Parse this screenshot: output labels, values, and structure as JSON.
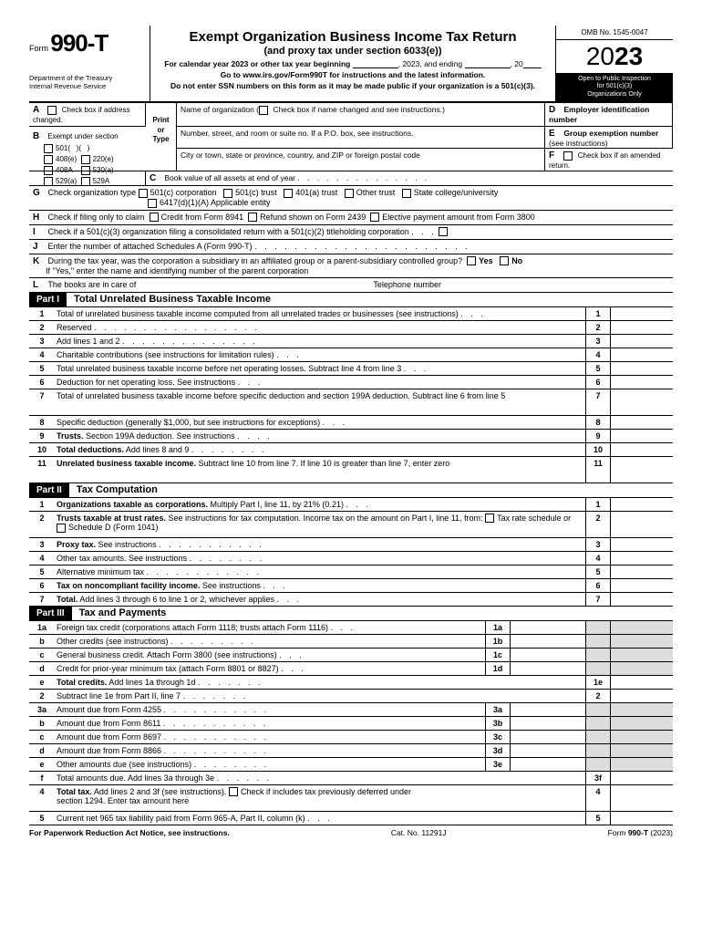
{
  "form": {
    "number": "990-T",
    "prefix": "Form"
  },
  "hdr": {
    "title": "Exempt Organization Business Income Tax Return",
    "sub": "(and proxy tax under section 6033(e))",
    "cal": "For calendar year 2023 or other tax year beginning",
    "cal2": ", 2023, and ending",
    "cal3": ", 20",
    "goto": "Go to www.irs.gov/Form990T for instructions and the latest information.",
    "ssn": "Do not enter SSN numbers on this form as it may be made public if your organization is a 501(c)(3).",
    "dept": "Department of the Treasury",
    "irs": "Internal Revenue Service",
    "omb": "OMB No. 1545-0047",
    "year": "23",
    "yrpre": "20",
    "insp1": "Open to Public Inspection",
    "insp2": "for 501(c)(3)",
    "insp3": "Organizations Only"
  },
  "A": {
    "lbl": "A",
    "txt": "Check box if address changed."
  },
  "B": {
    "lbl": "B",
    "txt": "Exempt under section",
    "opts": [
      "501(",
      "408(e)",
      "220(e)",
      "408A",
      "530(a)",
      "529(a)",
      "529A"
    ]
  },
  "pt": "Print or Type",
  "name": {
    "lbl": "Name of organization (",
    "cb": "Check box if name changed and see instructions.)"
  },
  "addr1": "Number, street, and room or suite no. If a P.O. box, see instructions.",
  "addr2": "City or town, state or province, country, and ZIP or foreign postal code",
  "C": {
    "lbl": "C",
    "txt": "Book value of all assets at end of year"
  },
  "D": {
    "lbl": "D",
    "txt": "Employer identification number"
  },
  "E": {
    "lbl": "E",
    "txt": "Group exemption number",
    "see": "(see instructions)"
  },
  "F": {
    "lbl": "F",
    "txt": "Check box if an amended return."
  },
  "G": {
    "lbl": "G",
    "txt": "Check organization type",
    "opts": [
      "501(c) corporation",
      "501(c) trust",
      "401(a) trust",
      "Other trust",
      "State college/university",
      "6417(d)(1)(A) Applicable entity"
    ]
  },
  "H": {
    "lbl": "H",
    "txt": "Check if filing only to claim",
    "opts": [
      "Credit from Form 8941",
      "Refund shown on Form 2439",
      "Elective payment amount from Form 3800"
    ]
  },
  "I": {
    "lbl": "I",
    "txt": "Check if a 501(c)(3) organization filing a consolidated return with a 501(c)(2) titleholding corporation"
  },
  "J": {
    "lbl": "J",
    "txt": "Enter the number of attached Schedules A (Form 990-T)"
  },
  "K": {
    "lbl": "K",
    "txt": "During the tax year, was the corporation a subsidiary in an affiliated group or a parent-subsidiary controlled group?",
    "yes": "Yes",
    "no": "No",
    "txt2": "If \"Yes,\" enter the name and identifying number of the parent corporation"
  },
  "L": {
    "lbl": "L",
    "txt": "The books are in care of",
    "tel": "Telephone number"
  },
  "parts": {
    "p1": "Part I",
    "p1t": "Total Unrelated Business Taxable Income",
    "p2": "Part II",
    "p2t": "Tax Computation",
    "p3": "Part III",
    "p3t": "Tax and Payments"
  },
  "p1": [
    {
      "n": "1",
      "t": "Total of unrelated business taxable income computed from all unrelated trades or businesses (see instructions)",
      "b": "1"
    },
    {
      "n": "2",
      "t": "Reserved",
      "b": "2"
    },
    {
      "n": "3",
      "t": "Add lines 1 and 2",
      "b": "3"
    },
    {
      "n": "4",
      "t": "Charitable contributions (see instructions for limitation rules)",
      "b": "4"
    },
    {
      "n": "5",
      "t": "Total unrelated business taxable income before net operating losses. Subtract line 4 from line 3",
      "b": "5"
    },
    {
      "n": "6",
      "t": "Deduction for net operating loss. See instructions",
      "b": "6"
    },
    {
      "n": "7",
      "t": "Total of unrelated business taxable income before specific deduction and section 199A deduction. Subtract line 6 from line 5",
      "b": "7",
      "tall": true
    },
    {
      "n": "8",
      "t": "Specific deduction (generally $1,000, but see instructions for exceptions)",
      "b": "8"
    },
    {
      "n": "9",
      "t": "Trusts. Section 199A deduction. See instructions",
      "b": "9",
      "bold": "Trusts."
    },
    {
      "n": "10",
      "t": "Total deductions. Add lines 8 and 9",
      "b": "10",
      "bold": "Total deductions."
    },
    {
      "n": "11",
      "t": "Unrelated business taxable income. Subtract line 10 from line 7. If line 10 is greater than line 7, enter zero",
      "b": "11",
      "bold": "Unrelated business taxable income.",
      "tall": true
    }
  ],
  "p2": [
    {
      "n": "1",
      "t": "Organizations taxable as corporations. Multiply Part I, line 11, by 21% (0.21)",
      "b": "1",
      "bold": "Organizations taxable as corporations."
    },
    {
      "n": "2",
      "t": "Trusts taxable at trust rates. See instructions for tax computation. Income tax on the amount on Part I, line 11, from:",
      "b": "2",
      "bold": "Trusts taxable at trust rates.",
      "tall": true,
      "cbs": [
        "Tax rate schedule or",
        "Schedule D (Form 1041)"
      ]
    },
    {
      "n": "3",
      "t": "Proxy tax. See instructions",
      "b": "3",
      "bold": "Proxy tax."
    },
    {
      "n": "4",
      "t": "Other tax amounts. See instructions",
      "b": "4"
    },
    {
      "n": "5",
      "t": "Alternative minimum tax",
      "b": "5"
    },
    {
      "n": "6",
      "t": "Tax on noncompliant facility income. See instructions",
      "b": "6",
      "bold": "Tax on noncompliant facility income."
    },
    {
      "n": "7",
      "t": "Total. Add lines 3 through 6 to line 1 or 2, whichever applies",
      "b": "7",
      "bold": "Total."
    }
  ],
  "p3a": [
    {
      "n": "1a",
      "t": "Foreign tax credit (corporations attach Form 1118; trusts attach Form 1116)",
      "b": "1a"
    },
    {
      "n": "b",
      "t": "Other credits (see instructions)",
      "b": "1b"
    },
    {
      "n": "c",
      "t": "General business credit. Attach Form 3800 (see instructions)",
      "b": "1c"
    },
    {
      "n": "d",
      "t": "Credit for prior-year minimum tax (attach Form 8801 or 8827)",
      "b": "1d"
    }
  ],
  "p3b": [
    {
      "n": "e",
      "t": "Total credits. Add lines 1a through 1d",
      "b": "1e",
      "bold": "Total credits."
    },
    {
      "n": "2",
      "t": "Subtract line 1e from Part II, line 7",
      "b": "2"
    }
  ],
  "p3c": [
    {
      "n": "3a",
      "t": "Amount due from Form 4255",
      "b": "3a"
    },
    {
      "n": "b",
      "t": "Amount due from Form 8611",
      "b": "3b"
    },
    {
      "n": "c",
      "t": "Amount due from Form 8697",
      "b": "3c"
    },
    {
      "n": "d",
      "t": "Amount due from Form 8866",
      "b": "3d"
    },
    {
      "n": "e",
      "t": "Other amounts due (see instructions)",
      "b": "3e"
    }
  ],
  "p3d": [
    {
      "n": "f",
      "t": "Total amounts due. Add lines 3a through 3e",
      "b": "3f"
    },
    {
      "n": "4",
      "t": "Total tax. Add lines 2 and 3f (see instructions).",
      "b": "4",
      "bold": "Total tax.",
      "tall": true,
      "cb": "Check if includes tax previously deferred under",
      "txt2": "section 1294. Enter tax amount here"
    },
    {
      "n": "5",
      "t": "Current net 965 tax liability paid from Form 965-A, Part II, column (k)",
      "b": "5"
    }
  ],
  "ftr": {
    "l": "For Paperwork Reduction Act Notice, see instructions.",
    "c": "Cat. No. 11291J",
    "r": "Form 990-T (2023)"
  }
}
